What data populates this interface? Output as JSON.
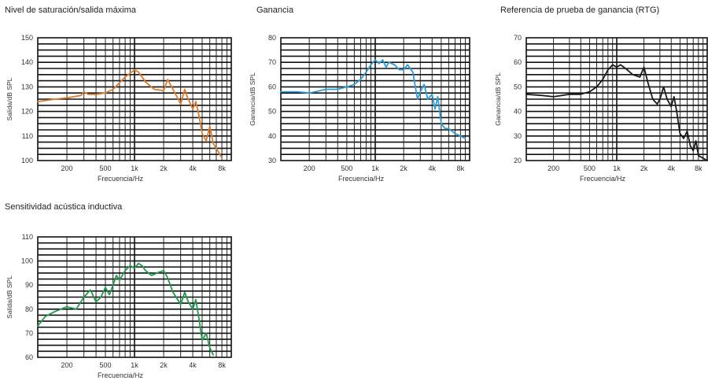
{
  "chart_data": [
    {
      "type": "line",
      "title": "Nivel de saturación/salida máxima",
      "xlabel": "Frecuencia/Hz",
      "ylabel": "Salida/dB SPL",
      "xscale": "log",
      "xlim": [
        100,
        10000
      ],
      "ylim": [
        100,
        150
      ],
      "yticks": [
        100,
        110,
        120,
        130,
        140,
        150
      ],
      "ytick_labels": [
        "100",
        "110",
        "120",
        "130",
        "140",
        "150"
      ],
      "xticks": [
        200,
        500,
        1000,
        2000,
        4000,
        8000
      ],
      "xtick_labels": [
        "200",
        "500",
        "1k",
        "2k",
        "4k",
        "8k"
      ],
      "grid": true,
      "series": [
        {
          "color": "#e07b2a",
          "x": [
            100,
            150,
            200,
            280,
            300,
            330,
            400,
            500,
            600,
            800,
            1000,
            1100,
            1300,
            1600,
            2000,
            2200,
            2500,
            3000,
            3300,
            3500,
            4000,
            4300,
            4600,
            5000,
            5500,
            6000,
            6500,
            7000,
            7500,
            8000
          ],
          "y": [
            124,
            125,
            125.5,
            126.5,
            128,
            127,
            127,
            127.5,
            129,
            134,
            137,
            136,
            132,
            129,
            128.5,
            133,
            129,
            123,
            129,
            126,
            121,
            124,
            119,
            111,
            108,
            114,
            107,
            105,
            103,
            101
          ]
        }
      ]
    },
    {
      "type": "line",
      "title": "Ganancia",
      "xlabel": "Frecuencia/Hz",
      "ylabel": "Ganancia/dB SPL",
      "xscale": "log",
      "xlim": [
        100,
        10000
      ],
      "ylim": [
        30,
        80
      ],
      "yticks": [
        30,
        40,
        50,
        60,
        70,
        80
      ],
      "ytick_labels": [
        "30",
        "40",
        "50",
        "60",
        "70",
        "80"
      ],
      "xticks": [
        200,
        500,
        1000,
        2000,
        4000,
        8000
      ],
      "xtick_labels": [
        "200",
        "500",
        "1k",
        "2k",
        "4k",
        "8k"
      ],
      "grid": true,
      "series": [
        {
          "color": "#2d9cd8",
          "x": [
            100,
            150,
            200,
            300,
            400,
            500,
            600,
            700,
            800,
            900,
            1000,
            1100,
            1200,
            1300,
            1400,
            1600,
            1800,
            2000,
            2200,
            2500,
            2800,
            3000,
            3300,
            3600,
            4000,
            4300,
            4600,
            5000,
            5500,
            6000,
            7000,
            8000,
            9000
          ],
          "y": [
            58,
            58,
            57.5,
            59,
            59,
            60,
            61,
            63,
            66,
            69,
            71,
            69.5,
            71,
            68,
            70,
            69,
            67,
            67,
            69,
            66,
            55,
            58,
            61,
            55,
            57,
            51,
            56,
            45,
            43,
            43,
            41,
            40,
            39
          ]
        }
      ]
    },
    {
      "type": "line",
      "title": "Referencia de prueba de ganancia (RTG)",
      "xlabel": "Frecuencia/Hz",
      "ylabel": "Ganancia/dB SPL",
      "xscale": "log",
      "xlim": [
        100,
        10000
      ],
      "ylim": [
        20,
        70
      ],
      "yticks": [
        20,
        30,
        40,
        50,
        60,
        70
      ],
      "ytick_labels": [
        "20",
        "30",
        "40",
        "50",
        "60",
        "70"
      ],
      "xticks": [
        200,
        500,
        1000,
        2000,
        4000,
        8000
      ],
      "xtick_labels": [
        "200",
        "500",
        "1k",
        "2k",
        "4k",
        "8k"
      ],
      "grid": true,
      "series": [
        {
          "color": "#1a1a1a",
          "x": [
            100,
            150,
            200,
            300,
            400,
            500,
            600,
            700,
            800,
            900,
            1000,
            1100,
            1200,
            1300,
            1500,
            1800,
            2000,
            2200,
            2500,
            2800,
            3000,
            3300,
            3600,
            4000,
            4300,
            4600,
            5000,
            5500,
            6000,
            6500,
            7000,
            7500,
            8000,
            9000,
            10000
          ],
          "y": [
            47,
            46.5,
            46,
            47,
            47,
            48,
            50,
            53,
            57,
            59,
            58,
            59,
            58,
            57,
            55,
            54,
            58,
            52,
            45,
            43,
            45,
            50,
            45,
            42,
            46,
            40,
            31,
            29,
            32,
            26,
            24,
            28,
            22,
            21,
            20
          ]
        }
      ]
    },
    {
      "type": "line",
      "title": "Sensitividad acústica inductiva",
      "xlabel": "Frecuencia/Hz",
      "ylabel": "Salida/dB SPL",
      "xscale": "log",
      "xlim": [
        100,
        10000
      ],
      "ylim": [
        60,
        110
      ],
      "yticks": [
        60,
        70,
        80,
        90,
        100,
        110
      ],
      "ytick_labels": [
        "60",
        "70",
        "80",
        "90",
        "100",
        "110"
      ],
      "xticks": [
        200,
        500,
        1000,
        2000,
        4000,
        8000
      ],
      "xtick_labels": [
        "200",
        "500",
        "1k",
        "2k",
        "4k",
        "8k"
      ],
      "grid": true,
      "series": [
        {
          "color": "#1f9a4b",
          "x": [
            100,
            120,
            150,
            200,
            250,
            300,
            350,
            400,
            450,
            500,
            550,
            600,
            650,
            700,
            800,
            900,
            1000,
            1100,
            1200,
            1300,
            1500,
            1700,
            2000,
            2200,
            2500,
            3000,
            3300,
            3600,
            4000,
            4300,
            4600,
            5000,
            5500,
            6000,
            6500
          ],
          "y": [
            73,
            77,
            79,
            81,
            80,
            85,
            88,
            83,
            85,
            89,
            86,
            90,
            94,
            92,
            96,
            98,
            97,
            99,
            98,
            96,
            94,
            95,
            96,
            93,
            87,
            82,
            87,
            83,
            80,
            84,
            77,
            67,
            70,
            64,
            61
          ]
        }
      ]
    }
  ]
}
